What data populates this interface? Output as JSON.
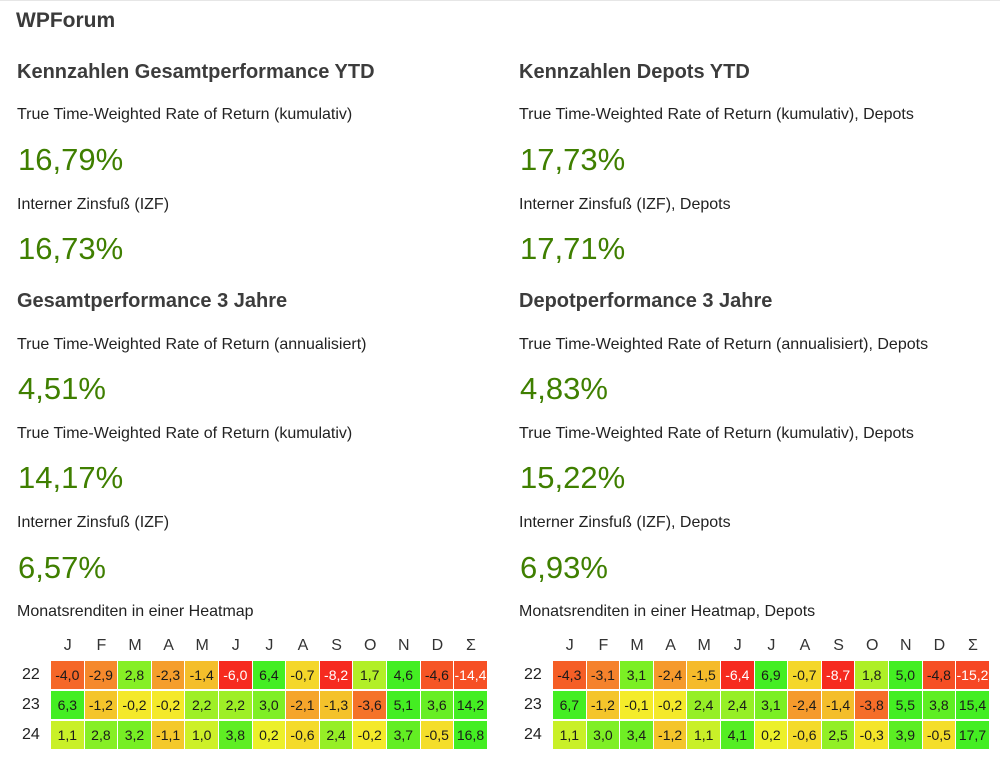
{
  "site_title": "WPForum",
  "left": {
    "ytd_heading": "Kennzahlen Gesamtperformance YTD",
    "ytd_ttwror_label": "True Time-Weighted Rate of Return (kumulativ)",
    "ytd_ttwror_value": "16,79%",
    "ytd_izf_label": "Interner Zinsfuß (IZF)",
    "ytd_izf_value": "16,73%",
    "y3_heading": "Gesamtperformance 3 Jahre",
    "y3_ttwror_ann_label": "True Time-Weighted Rate of Return (annualisiert)",
    "y3_ttwror_ann_value": "4,51%",
    "y3_ttwror_kum_label": "True Time-Weighted Rate of Return (kumulativ)",
    "y3_ttwror_kum_value": "14,17%",
    "y3_izf_label": "Interner Zinsfuß (IZF)",
    "y3_izf_value": "6,57%",
    "heatmap_label": "Monatsrenditen in einer Heatmap"
  },
  "right": {
    "ytd_heading": "Kennzahlen Depots YTD",
    "ytd_ttwror_label": "True Time-Weighted Rate of Return (kumulativ), Depots",
    "ytd_ttwror_value": "17,73%",
    "ytd_izf_label": "Interner Zinsfuß (IZF), Depots",
    "ytd_izf_value": "17,71%",
    "y3_heading": "Depotperformance  3 Jahre",
    "y3_ttwror_ann_label": "True Time-Weighted Rate of Return (annualisiert), Depots",
    "y3_ttwror_ann_value": "4,83%",
    "y3_ttwror_kum_label": "True Time-Weighted Rate of Return (kumulativ), Depots",
    "y3_ttwror_kum_value": "15,22%",
    "y3_izf_label": "Interner Zinsfuß (IZF), Depots",
    "y3_izf_value": "6,93%",
    "heatmap_label": "Monatsrenditen in einer Heatmap, Depots"
  },
  "colors": {
    "value_green": "#3f7f00",
    "heat_red": "#f62b1f",
    "heat_orange": "#f5852c",
    "heat_yellow": "#f4f02a",
    "heat_green": "#44ee22"
  },
  "chart_data": [
    {
      "type": "heatmap",
      "title": "Monatsrenditen in einer Heatmap",
      "columns": [
        "J",
        "F",
        "M",
        "A",
        "M",
        "J",
        "J",
        "A",
        "S",
        "O",
        "N",
        "D",
        "Σ"
      ],
      "rows": [
        "22",
        "23",
        "24"
      ],
      "cells": [
        [
          "-4,0",
          "-2,9",
          "2,8",
          "-2,3",
          "-1,4",
          "-6,0",
          "6,4",
          "-0,7",
          "-8,2",
          "1,7",
          "4,6",
          "-4,6",
          "-14,4"
        ],
        [
          "6,3",
          "-1,2",
          "-0,2",
          "-0,2",
          "2,2",
          "2,2",
          "3,0",
          "-2,1",
          "-1,3",
          "-3,6",
          "5,1",
          "3,6",
          "14,2"
        ],
        [
          "1,1",
          "2,8",
          "3,2",
          "-1,1",
          "1,0",
          "3,8",
          "0,2",
          "-0,6",
          "2,4",
          "-0,2",
          "3,7",
          "-0,5",
          "16,8"
        ]
      ]
    },
    {
      "type": "heatmap",
      "title": "Monatsrenditen in einer Heatmap, Depots",
      "columns": [
        "J",
        "F",
        "M",
        "A",
        "M",
        "J",
        "J",
        "A",
        "S",
        "O",
        "N",
        "D",
        "Σ"
      ],
      "rows": [
        "22",
        "23",
        "24"
      ],
      "cells": [
        [
          "-4,3",
          "-3,1",
          "3,1",
          "-2,4",
          "-1,5",
          "-6,4",
          "6,9",
          "-0,7",
          "-8,7",
          "1,8",
          "5,0",
          "-4,8",
          "-15,2"
        ],
        [
          "6,7",
          "-1,2",
          "-0,1",
          "-0,2",
          "2,4",
          "2,4",
          "3,1",
          "-2,4",
          "-1,4",
          "-3,8",
          "5,5",
          "3,8",
          "15,4"
        ],
        [
          "1,1",
          "3,0",
          "3,4",
          "-1,2",
          "1,1",
          "4,1",
          "0,2",
          "-0,6",
          "2,5",
          "-0,3",
          "3,9",
          "-0,5",
          "17,7"
        ]
      ]
    }
  ]
}
